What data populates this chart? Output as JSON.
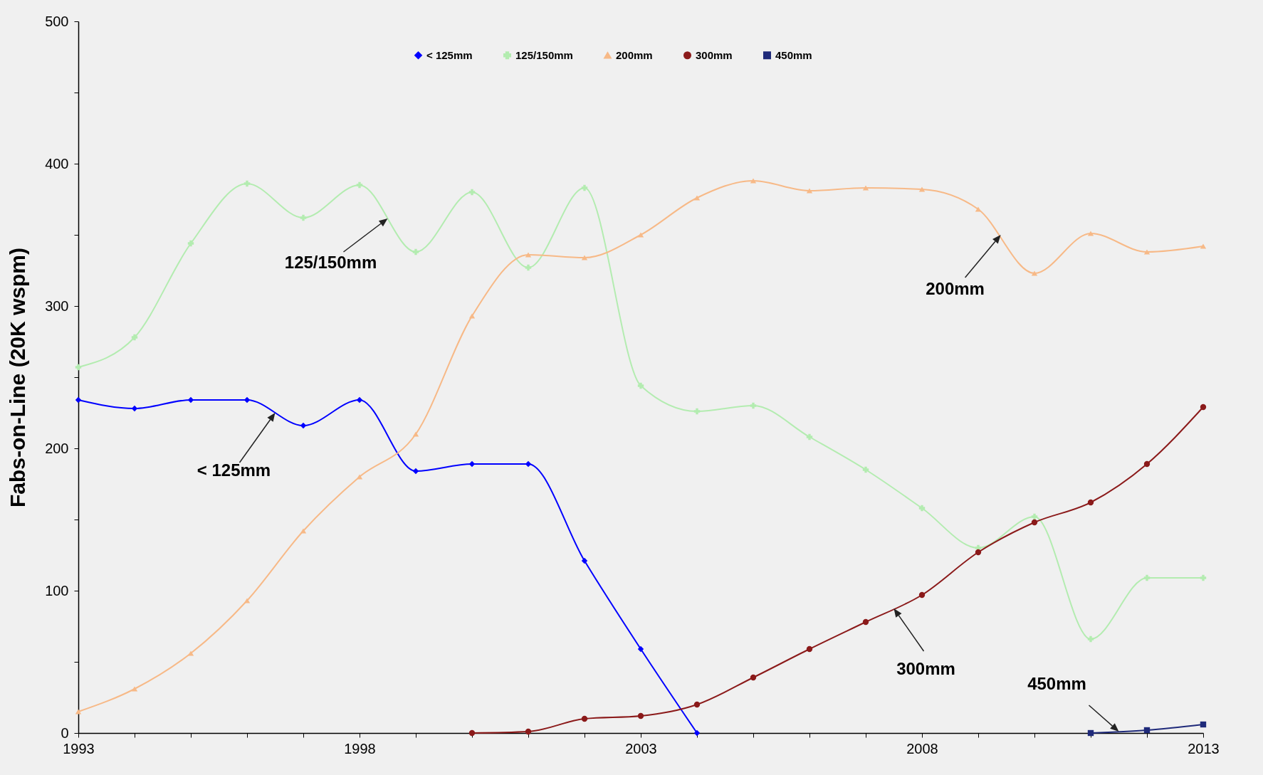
{
  "chart_data": {
    "type": "line",
    "ylabel": "Fabs-on-Line (20K wspm)",
    "x": [
      1993,
      1994,
      1995,
      1996,
      1997,
      1998,
      1999,
      2000,
      2001,
      2002,
      2003,
      2004,
      2005,
      2006,
      2007,
      2008,
      2009,
      2010,
      2011,
      2012,
      2013
    ],
    "series": [
      {
        "name": "< 125mm",
        "color": "#0000ff",
        "marker": "diamond",
        "values": [
          234,
          228,
          234,
          234,
          216,
          234,
          184,
          189,
          189,
          121,
          59,
          0,
          null,
          null,
          null,
          null,
          null,
          null,
          null,
          null,
          null
        ]
      },
      {
        "name": "125/150mm",
        "color": "#b3ecb0",
        "marker": "cross",
        "values": [
          257,
          278,
          344,
          386,
          362,
          385,
          338,
          380,
          327,
          383,
          244,
          226,
          230,
          208,
          185,
          158,
          130,
          152,
          66,
          109,
          109
        ]
      },
      {
        "name": "200mm",
        "color": "#f7b987",
        "marker": "triangle",
        "values": [
          15,
          31,
          56,
          93,
          142,
          180,
          210,
          293,
          336,
          334,
          350,
          376,
          388,
          381,
          383,
          382,
          368,
          323,
          351,
          338,
          342
        ]
      },
      {
        "name": "300mm",
        "color": "#8b1a1a",
        "marker": "circle",
        "values": [
          null,
          null,
          null,
          null,
          null,
          null,
          null,
          0,
          1,
          10,
          12,
          20,
          39,
          59,
          78,
          97,
          127,
          148,
          162,
          189,
          229
        ]
      },
      {
        "name": "450mm",
        "color": "#1f2a7a",
        "marker": "square",
        "values": [
          null,
          null,
          null,
          null,
          null,
          null,
          null,
          null,
          null,
          null,
          null,
          null,
          null,
          null,
          null,
          null,
          null,
          null,
          0,
          2,
          6
        ]
      }
    ],
    "xlim": [
      1993,
      2013
    ],
    "xticks": [
      1993,
      {
        "value": 1994,
        "label": null
      },
      {
        "value": 1995,
        "label": null
      },
      {
        "value": 1996,
        "label": null
      },
      {
        "value": 1997,
        "label": null
      },
      1998,
      {
        "value": 1999,
        "label": null
      },
      {
        "value": 2000,
        "label": null
      },
      {
        "value": 2001,
        "label": null
      },
      {
        "value": 2002,
        "label": null
      },
      2003,
      {
        "value": 2004,
        "label": null
      },
      {
        "value": 2005,
        "label": null
      },
      {
        "value": 2006,
        "label": null
      },
      {
        "value": 2007,
        "label": null
      },
      2008,
      {
        "value": 2009,
        "label": null
      },
      {
        "value": 2010,
        "label": null
      },
      {
        "value": 2011,
        "label": null
      },
      {
        "value": 2012,
        "label": null
      },
      2013
    ],
    "ylim": [
      0,
      500
    ],
    "yticks": [
      0,
      {
        "value": 50,
        "label": null
      },
      100,
      {
        "value": 150,
        "label": null
      },
      200,
      {
        "value": 250,
        "label": null
      },
      300,
      {
        "value": 350,
        "label": null
      },
      400,
      {
        "value": 450,
        "label": null
      },
      500
    ],
    "annotations": [
      {
        "text": "125/150mm",
        "x": 1998.5,
        "y": 361.5
      },
      {
        "text": "< 125mm",
        "x": 1996.5,
        "y": 225
      },
      {
        "text": "200mm",
        "x": 2009.4,
        "y": 350
      },
      {
        "text": "300mm",
        "x": 2007.5,
        "y": 87.5
      },
      {
        "text": "450mm",
        "x": 2011.5,
        "y": 1
      }
    ],
    "grid": false,
    "legend": "top",
    "line_style": "solid"
  }
}
